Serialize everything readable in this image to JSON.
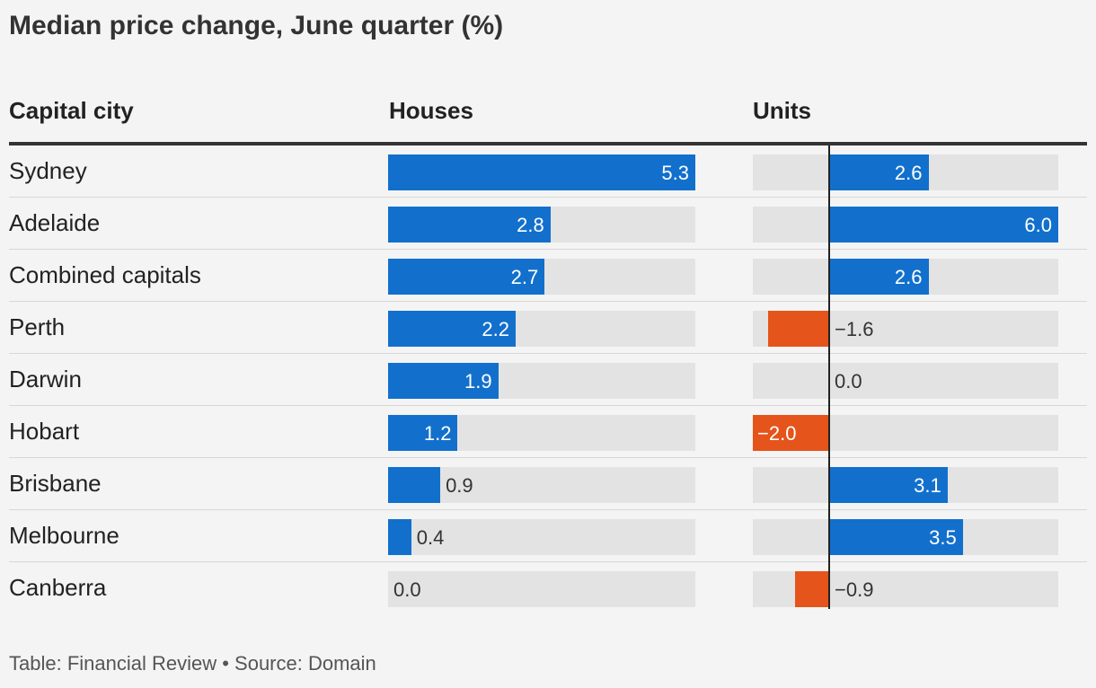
{
  "title": "Median price change, June quarter (%)",
  "headers": {
    "city": "Capital city",
    "houses": "Houses",
    "units": "Units"
  },
  "footer": "Table: Financial Review • Source: Domain",
  "colors": {
    "positive": "#1270cc",
    "negative": "#e5541a",
    "track": "#e3e3e3"
  },
  "chart_data": {
    "type": "bar",
    "categories": [
      "Sydney",
      "Adelaide",
      "Combined capitals",
      "Perth",
      "Darwin",
      "Hobart",
      "Brisbane",
      "Melbourne",
      "Canberra"
    ],
    "series": [
      {
        "name": "Houses",
        "values": [
          5.3,
          2.8,
          2.7,
          2.2,
          1.9,
          1.2,
          0.9,
          0.4,
          0.0
        ],
        "labels": [
          "5.3",
          "2.8",
          "2.7",
          "2.2",
          "1.9",
          "1.2",
          "0.9",
          "0.4",
          "0.0"
        ],
        "xlim": [
          0,
          5.3
        ]
      },
      {
        "name": "Units",
        "values": [
          2.6,
          6.0,
          2.6,
          -1.6,
          0.0,
          -2.0,
          3.1,
          3.5,
          -0.9
        ],
        "labels": [
          "2.6",
          "6.0",
          "2.6",
          "−1.6",
          "0.0",
          "−2.0",
          "3.1",
          "3.5",
          "−0.9"
        ],
        "xlim": [
          -2.0,
          6.0
        ]
      }
    ],
    "title": "Median price change, June quarter (%)",
    "grid": false,
    "legend": "none"
  }
}
